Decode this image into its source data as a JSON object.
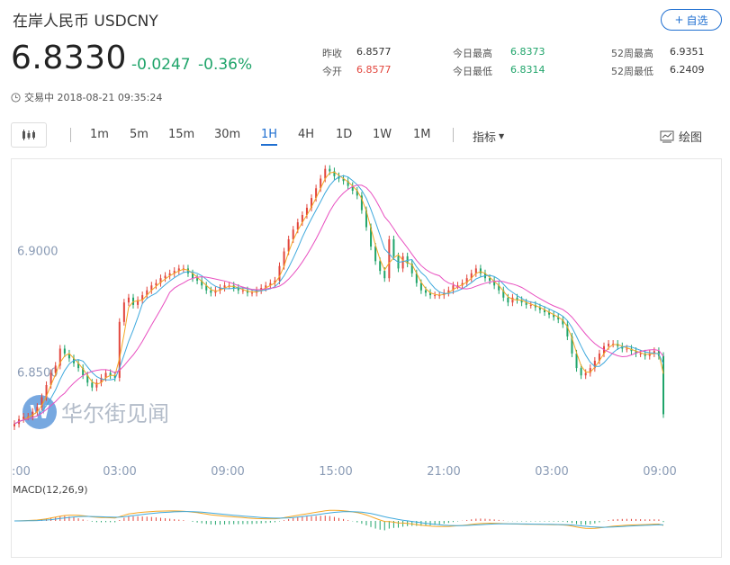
{
  "header": {
    "title": "在岸人民币  USDCNY",
    "follow_label": "自选",
    "price": "6.8330",
    "change": "-0.0247",
    "change_pct": "-0.36%",
    "status": "交易中 2018-08-21 09:35:24"
  },
  "stats": [
    {
      "label": "昨收",
      "value": "6.8577",
      "color": "#333333"
    },
    {
      "label": "今开",
      "value": "6.8577",
      "color": "#e2453c"
    },
    {
      "label": "今日最高",
      "value": "6.8373",
      "color": "#1fa46a"
    },
    {
      "label": "今日最低",
      "value": "6.8314",
      "color": "#1fa46a"
    },
    {
      "label": "52周最高",
      "value": "6.9351",
      "color": "#333333"
    },
    {
      "label": "52周最低",
      "value": "6.2409",
      "color": "#333333"
    }
  ],
  "toolbar": {
    "timeframes": [
      "1m",
      "5m",
      "15m",
      "30m",
      "1H",
      "4H",
      "1D",
      "1W",
      "1M"
    ],
    "active": "1H",
    "indicator_label": "指标",
    "draw_label": "绘图"
  },
  "colors": {
    "up": "#e2453c",
    "down": "#1fa46a",
    "accent": "#1f6fd1",
    "ma_fast": "#f5a623",
    "ma_mid": "#3fa9dd",
    "ma_slow": "#e84fc0"
  },
  "watermark": "华尔街见闻",
  "chart_data": {
    "type": "candlestick",
    "y_ticks": [
      "6.9000",
      "6.8500"
    ],
    "x_ticks": [
      ":00",
      "03:00",
      "09:00",
      "15:00",
      "21:00",
      "03:00",
      "09:00"
    ],
    "ylim": [
      6.825,
      6.935
    ],
    "closes": [
      6.829,
      6.831,
      6.832,
      6.832,
      6.834,
      6.836,
      6.84,
      6.845,
      6.85,
      6.853,
      6.86,
      6.858,
      6.856,
      6.854,
      6.852,
      6.849,
      6.846,
      6.844,
      6.846,
      6.848,
      6.85,
      6.849,
      6.848,
      6.871,
      6.879,
      6.881,
      6.878,
      6.88,
      6.882,
      6.884,
      6.886,
      6.887,
      6.889,
      6.89,
      6.891,
      6.892,
      6.893,
      6.893,
      6.891,
      6.889,
      6.888,
      6.886,
      6.884,
      6.883,
      6.884,
      6.885,
      6.886,
      6.886,
      6.885,
      6.884,
      6.884,
      6.883,
      6.883,
      6.884,
      6.885,
      6.886,
      6.887,
      6.888,
      6.894,
      6.9,
      6.905,
      6.909,
      6.912,
      6.915,
      6.918,
      6.922,
      6.926,
      6.93,
      6.934,
      6.933,
      6.931,
      6.93,
      6.929,
      6.927,
      6.925,
      6.923,
      6.917,
      6.91,
      6.902,
      6.896,
      6.892,
      6.889,
      6.905,
      6.898,
      6.893,
      6.898,
      6.895,
      6.891,
      6.887,
      6.884,
      6.883,
      6.882,
      6.882,
      6.882,
      6.883,
      6.884,
      6.886,
      6.886,
      6.887,
      6.889,
      6.891,
      6.893,
      6.891,
      6.889,
      6.888,
      6.886,
      6.884,
      6.881,
      6.879,
      6.881,
      6.88,
      6.879,
      6.878,
      6.878,
      6.877,
      6.876,
      6.875,
      6.874,
      6.873,
      6.872,
      6.87,
      6.865,
      6.858,
      6.852,
      6.849,
      6.85,
      6.852,
      6.855,
      6.858,
      6.861,
      6.862,
      6.862,
      6.861,
      6.86,
      6.86,
      6.859,
      6.858,
      6.858,
      6.857,
      6.858,
      6.859,
      6.857,
      6.833
    ],
    "macd_label": "MACD(12,26,9)"
  }
}
